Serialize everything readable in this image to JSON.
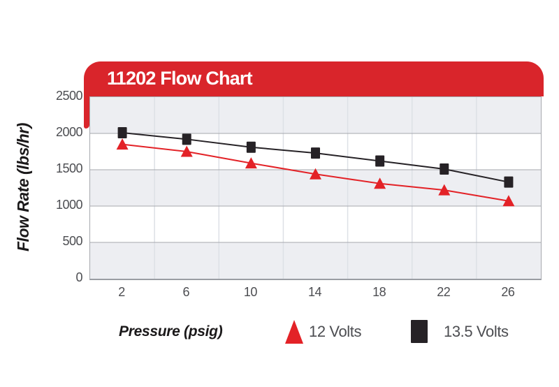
{
  "title": "11202 Flow Chart",
  "colors": {
    "banner_red": "#d9252b",
    "series_red": "#e32227",
    "series_black": "#262226",
    "band_grey": "#edeef2",
    "band_white": "#ffffff",
    "h_gridline": "#a6a8ae",
    "v_gridline": "#dde0e6",
    "tick_text": "#4c4d51"
  },
  "chart_data": {
    "type": "line",
    "title": "11202 Flow Chart",
    "xlabel": "Pressure (psig)",
    "ylabel": "Flow Rate (lbs/hr)",
    "x": [
      2,
      6,
      10,
      14,
      18,
      22,
      26
    ],
    "x_tick_labels": [
      "2",
      "6",
      "10",
      "14",
      "18",
      "22",
      "26"
    ],
    "y_ticks": [
      0,
      500,
      1000,
      1500,
      2000,
      2500
    ],
    "y_tick_labels": [
      "0",
      "500",
      "1000",
      "1500",
      "2000",
      "2500"
    ],
    "ylim": [
      0,
      2500
    ],
    "grid": "horizontal gridlines with alternating grey/white bands",
    "legend_position": "bottom",
    "series": [
      {
        "name": "12 Volts",
        "marker": "triangle",
        "color": "#e32227",
        "values": [
          1850,
          1750,
          1590,
          1440,
          1310,
          1220,
          1070
        ]
      },
      {
        "name": "13.5 Volts",
        "marker": "square",
        "color": "#262226",
        "values": [
          2010,
          1920,
          1810,
          1730,
          1620,
          1510,
          1330
        ]
      }
    ]
  },
  "legend": {
    "item_12v": "12 Volts",
    "item_135v": "13.5 Volts"
  }
}
